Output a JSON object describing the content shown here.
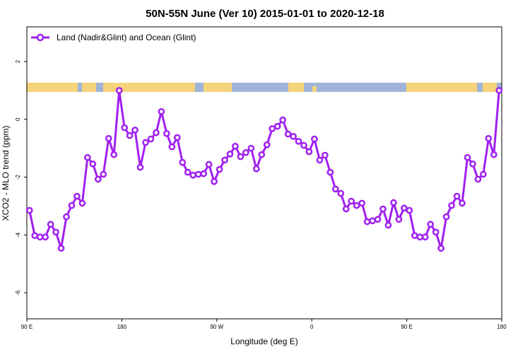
{
  "chart_data": {
    "type": "line",
    "title": "50N-55N June (Ver 10)   2015-01-01 to 2020-12-18",
    "x_label": "Longitude (deg E)",
    "y_label": "XCO2 - MLO trend (ppm)",
    "x": [
      92.5,
      97.5,
      102.5,
      107.5,
      112.5,
      117.5,
      122.5,
      127.5,
      132.5,
      137.5,
      142.5,
      147.5,
      152.5,
      157.5,
      162.5,
      167.5,
      172.5,
      177.5,
      182.5,
      187.5,
      192.5,
      197.5,
      202.5,
      207.5,
      212.5,
      217.5,
      222.5,
      227.5,
      232.5,
      237.5,
      242.5,
      247.5,
      252.5,
      257.5,
      262.5,
      267.5,
      272.5,
      277.5,
      282.5,
      287.5,
      292.5,
      297.5,
      302.5,
      307.5,
      312.5,
      317.5,
      322.5,
      327.5,
      332.5,
      337.5,
      342.5,
      347.5,
      352.5,
      357.5,
      362.5,
      367.5,
      372.5,
      377.5,
      382.5,
      387.5,
      392.5,
      397.5,
      402.5,
      407.5,
      412.5,
      417.5,
      422.5,
      427.5,
      432.5,
      437.5,
      442.5,
      447.5,
      452.5,
      457.5,
      462.5,
      467.5,
      472.5,
      477.5,
      482.5,
      487.5,
      492.5,
      497.5,
      502.5,
      507.5,
      512.5,
      517.5,
      522.5,
      527.5,
      532.5,
      537.5
    ],
    "series": [
      {
        "name": "Land (Nadir&Glint) and Ocean (Glint)",
        "color": "#a020f0",
        "values": [
          -3.15,
          -4.02,
          -4.07,
          -4.07,
          -3.63,
          -3.9,
          -4.46,
          -3.37,
          -2.98,
          -2.66,
          -2.9,
          -1.32,
          -1.54,
          -2.07,
          -1.9,
          -0.66,
          -1.22,
          1.0,
          -0.29,
          -0.56,
          -0.37,
          -1.66,
          -0.8,
          -0.68,
          -0.46,
          0.27,
          -0.49,
          -0.95,
          -0.63,
          -1.49,
          -1.83,
          -1.93,
          -1.9,
          -1.88,
          -1.56,
          -2.15,
          -1.73,
          -1.41,
          -1.2,
          -0.93,
          -1.29,
          -1.15,
          -1.0,
          -1.71,
          -1.22,
          -0.88,
          -0.32,
          -0.24,
          -0.02,
          -0.51,
          -0.59,
          -0.76,
          -0.9,
          -1.12,
          -0.68,
          -1.41,
          -1.24,
          -1.83,
          -2.41,
          -2.56,
          -3.1,
          -2.83,
          -2.98,
          -2.9,
          -3.54,
          -3.51,
          -3.46,
          -3.1,
          -3.66,
          -2.88,
          -3.46,
          -3.07,
          -3.15,
          -4.02,
          -4.07,
          -4.07,
          -3.63,
          -3.9,
          -4.46,
          -3.37,
          -2.98,
          -2.66,
          -2.9,
          -1.32,
          -1.54,
          -2.07,
          -1.9,
          -0.66,
          -1.22,
          1.0
        ]
      }
    ],
    "xlim": [
      90,
      540
    ],
    "xticks": [
      {
        "value": 90,
        "label": "90 E"
      },
      180,
      {
        "value": 270,
        "label": "90 W"
      },
      {
        "value": 360,
        "label": "0"
      },
      {
        "value": 450,
        "label": "90 E"
      },
      {
        "value": 540,
        "label": "180"
      }
    ],
    "ylim": [
      -6.9,
      3.2
    ],
    "yticks": [
      -6,
      -4,
      -2,
      0,
      2
    ],
    "legend": "top-left"
  }
}
